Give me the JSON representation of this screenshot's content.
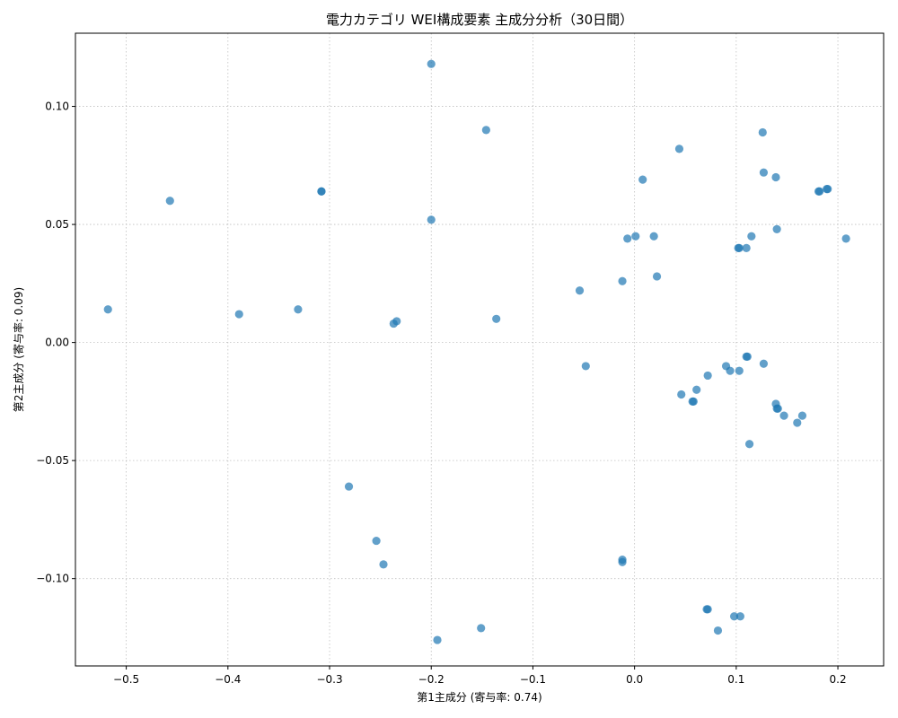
{
  "chart_data": {
    "type": "scatter",
    "title": "電力カテゴリ WEI構成要素 主成分分析（30日間）",
    "xlabel": "第1主成分 (寄与率: 0.74)",
    "ylabel": "第2主成分 (寄与率: 0.09)",
    "xlim": [
      -0.55,
      0.245
    ],
    "ylim": [
      -0.137,
      0.131
    ],
    "x_ticks": [
      -0.5,
      -0.4,
      -0.3,
      -0.2,
      -0.1,
      0.0,
      0.1,
      0.2
    ],
    "x_tick_labels": [
      "−0.5",
      "−0.4",
      "−0.3",
      "−0.2",
      "−0.1",
      "0.0",
      "0.1",
      "0.2"
    ],
    "y_ticks": [
      -0.1,
      -0.05,
      0.0,
      0.05,
      0.1
    ],
    "y_tick_labels": [
      "−0.10",
      "−0.05",
      "0.00",
      "0.05",
      "0.10"
    ],
    "grid": true,
    "color": "#1f77b4",
    "points": [
      {
        "x": -0.518,
        "y": 0.014
      },
      {
        "x": -0.457,
        "y": 0.06
      },
      {
        "x": -0.389,
        "y": 0.012
      },
      {
        "x": -0.331,
        "y": 0.014
      },
      {
        "x": -0.308,
        "y": 0.064
      },
      {
        "x": -0.308,
        "y": 0.064
      },
      {
        "x": -0.281,
        "y": -0.061
      },
      {
        "x": -0.254,
        "y": -0.084
      },
      {
        "x": -0.247,
        "y": -0.094
      },
      {
        "x": -0.237,
        "y": 0.008
      },
      {
        "x": -0.234,
        "y": 0.009
      },
      {
        "x": -0.2,
        "y": 0.118
      },
      {
        "x": -0.2,
        "y": 0.052
      },
      {
        "x": -0.194,
        "y": -0.126
      },
      {
        "x": -0.151,
        "y": -0.121
      },
      {
        "x": -0.146,
        "y": 0.09
      },
      {
        "x": -0.136,
        "y": 0.01
      },
      {
        "x": -0.054,
        "y": 0.022
      },
      {
        "x": -0.048,
        "y": -0.01
      },
      {
        "x": -0.012,
        "y": 0.026
      },
      {
        "x": -0.012,
        "y": -0.092
      },
      {
        "x": -0.012,
        "y": -0.093
      },
      {
        "x": -0.007,
        "y": 0.044
      },
      {
        "x": 0.001,
        "y": 0.045
      },
      {
        "x": 0.008,
        "y": 0.069
      },
      {
        "x": 0.019,
        "y": 0.045
      },
      {
        "x": 0.022,
        "y": 0.028
      },
      {
        "x": 0.044,
        "y": 0.082
      },
      {
        "x": 0.046,
        "y": -0.022
      },
      {
        "x": 0.057,
        "y": -0.025
      },
      {
        "x": 0.058,
        "y": -0.025
      },
      {
        "x": 0.061,
        "y": -0.02
      },
      {
        "x": 0.071,
        "y": -0.113
      },
      {
        "x": 0.072,
        "y": -0.113
      },
      {
        "x": 0.072,
        "y": -0.014
      },
      {
        "x": 0.082,
        "y": -0.122
      },
      {
        "x": 0.09,
        "y": -0.01
      },
      {
        "x": 0.094,
        "y": -0.012
      },
      {
        "x": 0.098,
        "y": -0.116
      },
      {
        "x": 0.102,
        "y": 0.04
      },
      {
        "x": 0.103,
        "y": -0.012
      },
      {
        "x": 0.103,
        "y": 0.04
      },
      {
        "x": 0.104,
        "y": -0.116
      },
      {
        "x": 0.11,
        "y": 0.04
      },
      {
        "x": 0.11,
        "y": -0.006
      },
      {
        "x": 0.111,
        "y": -0.006
      },
      {
        "x": 0.113,
        "y": -0.043
      },
      {
        "x": 0.115,
        "y": 0.045
      },
      {
        "x": 0.126,
        "y": 0.089
      },
      {
        "x": 0.127,
        "y": 0.072
      },
      {
        "x": 0.127,
        "y": -0.009
      },
      {
        "x": 0.139,
        "y": 0.07
      },
      {
        "x": 0.139,
        "y": -0.026
      },
      {
        "x": 0.14,
        "y": -0.028
      },
      {
        "x": 0.14,
        "y": 0.048
      },
      {
        "x": 0.141,
        "y": -0.028
      },
      {
        "x": 0.147,
        "y": -0.031
      },
      {
        "x": 0.16,
        "y": -0.034
      },
      {
        "x": 0.165,
        "y": -0.031
      },
      {
        "x": 0.181,
        "y": 0.064
      },
      {
        "x": 0.182,
        "y": 0.064
      },
      {
        "x": 0.189,
        "y": 0.065
      },
      {
        "x": 0.19,
        "y": 0.065
      },
      {
        "x": 0.208,
        "y": 0.044
      }
    ]
  }
}
